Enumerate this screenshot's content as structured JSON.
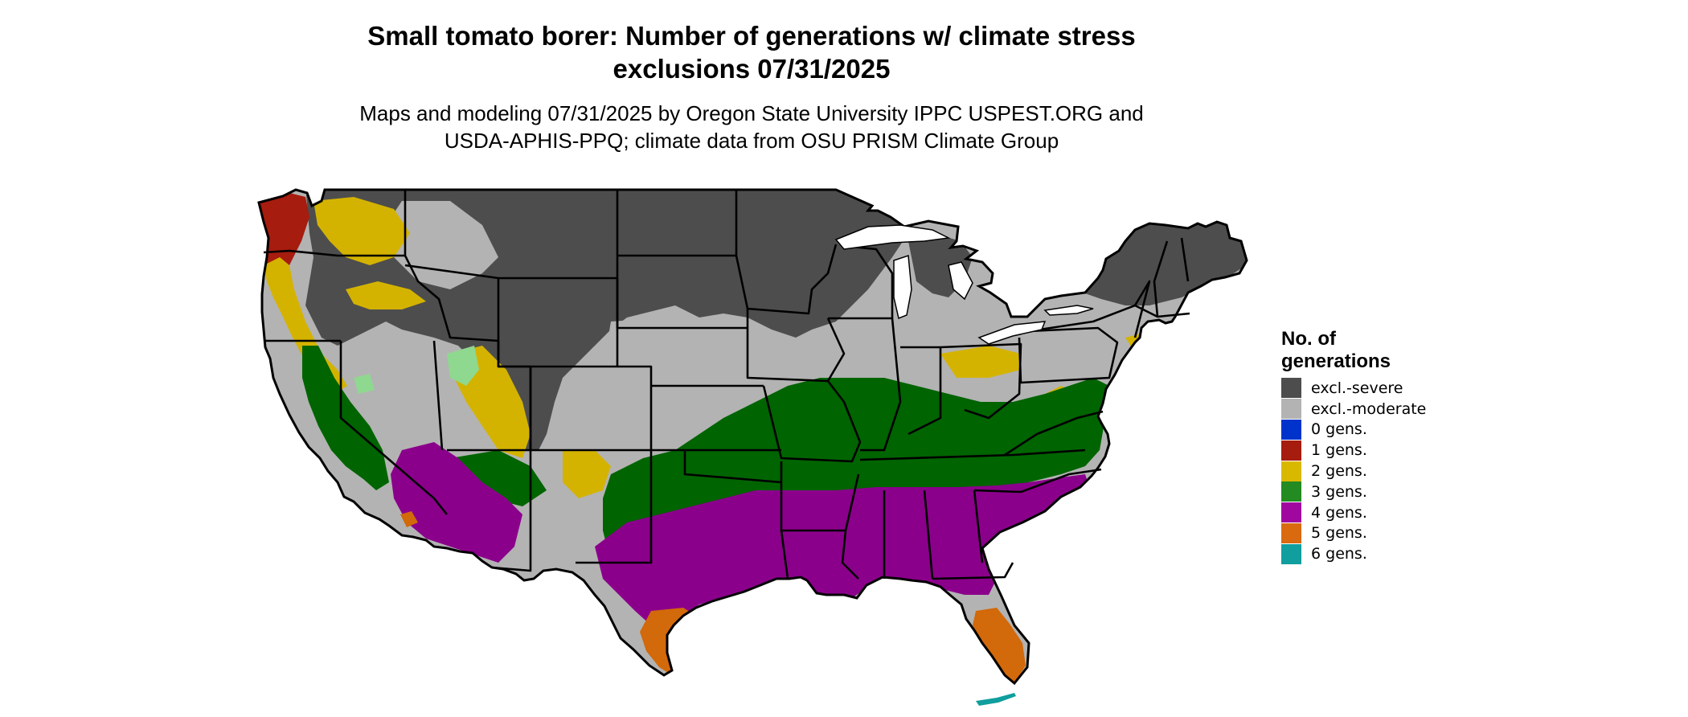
{
  "title_line1": "Small tomato borer: Number of generations w/ climate stress",
  "title_line2": "exclusions 07/31/2025",
  "subtitle_line1": "Maps and modeling 07/31/2025 by Oregon State University IPPC USPEST.ORG and",
  "subtitle_line2": "USDA-APHIS-PPQ; climate data from OSU PRISM Climate Group",
  "legend": {
    "title_line1": "No. of",
    "title_line2": "generations",
    "items": [
      {
        "label": "excl.-severe",
        "color": "#4d4d4d"
      },
      {
        "label": "excl.-moderate",
        "color": "#b3b3b3"
      },
      {
        "label": "0 gens.",
        "color": "#0033cc"
      },
      {
        "label": "1 gens.",
        "color": "#a61c0e"
      },
      {
        "label": "2 gens.",
        "color": "#d9b800"
      },
      {
        "label": "3 gens.",
        "color": "#238b22"
      },
      {
        "label": "4 gens.",
        "color": "#a0079e"
      },
      {
        "label": "5 gens.",
        "color": "#d96a0f"
      },
      {
        "label": "6 gens.",
        "color": "#109e9e"
      }
    ]
  },
  "map_colors": {
    "severe": "#4d4d4d",
    "moderate": "#b3b3b3",
    "one": "#a61c0e",
    "two": "#d4b300",
    "three": "#006400",
    "four": "#8b008b",
    "five": "#d2690a",
    "six": "#109e9e",
    "light_green": "#8fd88f",
    "magenta_light": "#e066e0"
  }
}
